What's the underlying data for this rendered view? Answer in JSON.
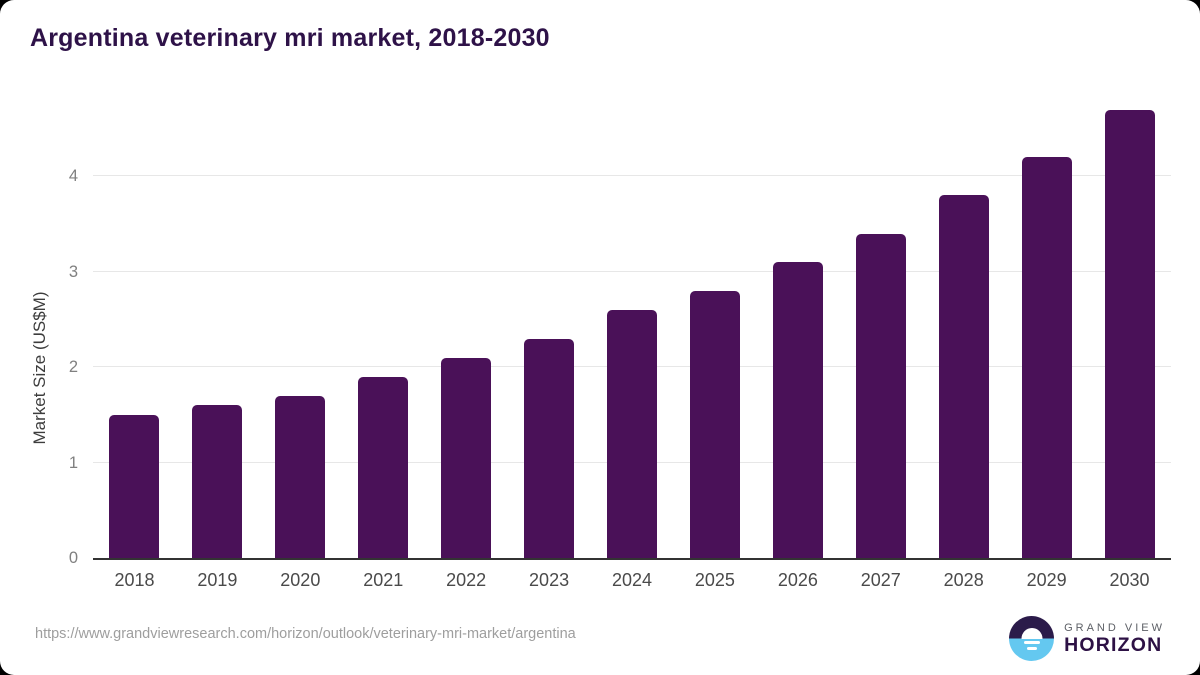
{
  "chart_data": {
    "type": "bar",
    "title": "Argentina veterinary mri market, 2018-2030",
    "categories": [
      "2018",
      "2019",
      "2020",
      "2021",
      "2022",
      "2023",
      "2024",
      "2025",
      "2026",
      "2027",
      "2028",
      "2029",
      "2030"
    ],
    "values": [
      1.5,
      1.6,
      1.7,
      1.9,
      2.1,
      2.3,
      2.6,
      2.8,
      3.1,
      3.4,
      3.8,
      4.2,
      4.7
    ],
    "xlabel": "",
    "ylabel": "Market Size (US$M)",
    "yticks": [
      0,
      1,
      2,
      3,
      4
    ],
    "ylim": [
      0,
      4.8
    ],
    "grid": true,
    "legend": "none",
    "bar_color": "#4a1158"
  },
  "colors": {
    "title": "#2e1248",
    "bar": "#4a1158",
    "gridline": "#e7e7e7",
    "axis_line": "#333333",
    "logo_purple": "#2b1b4a",
    "logo_blue": "#64c8f0"
  },
  "footer": {
    "source_url": "https://www.grandviewresearch.com/horizon/outlook/veterinary-mri-market/argentina",
    "logo": {
      "line1": "GRAND VIEW",
      "line2": "HORIZON"
    }
  }
}
